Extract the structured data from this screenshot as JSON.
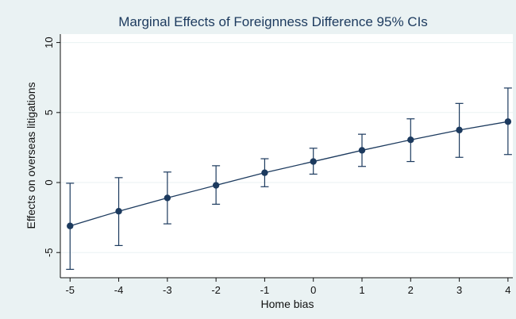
{
  "chart_data": {
    "type": "scatter",
    "title": "Marginal Effects of Foreignness Difference 95% CIs",
    "xlabel": "Home bias",
    "ylabel": "Effects on overseas litigations",
    "x": [
      -5,
      -4,
      -3,
      -2,
      -1,
      0,
      1,
      2,
      3,
      4
    ],
    "x_tick_labels": [
      "-5",
      "-4",
      "-3",
      "-2",
      "-1",
      "0",
      "1",
      "2",
      "3",
      "4"
    ],
    "y_ticks": [
      -5,
      0,
      5,
      10
    ],
    "y_tick_labels": [
      "-5",
      "0",
      "5",
      "10"
    ],
    "xlim": [
      -5.2,
      4.1
    ],
    "ylim": [
      -6.8,
      10.6
    ],
    "grid": true,
    "series": [
      {
        "values": [
          -3.1,
          -2.05,
          -1.1,
          -0.2,
          0.7,
          1.5,
          2.3,
          3.05,
          3.75,
          4.35
        ],
        "ci_lower": [
          -6.2,
          -4.5,
          -2.95,
          -1.55,
          -0.3,
          0.6,
          1.15,
          1.5,
          1.8,
          2.0
        ],
        "ci_upper": [
          -0.05,
          0.35,
          0.75,
          1.2,
          1.7,
          2.45,
          3.45,
          4.55,
          5.65,
          6.75
        ],
        "color": "#1c3a5e"
      }
    ]
  },
  "colors": {
    "outer_background": "#eaf2f3",
    "plot_background": "#ffffff",
    "gridline": "#eaf2f3",
    "series": "#1c3a5e"
  }
}
